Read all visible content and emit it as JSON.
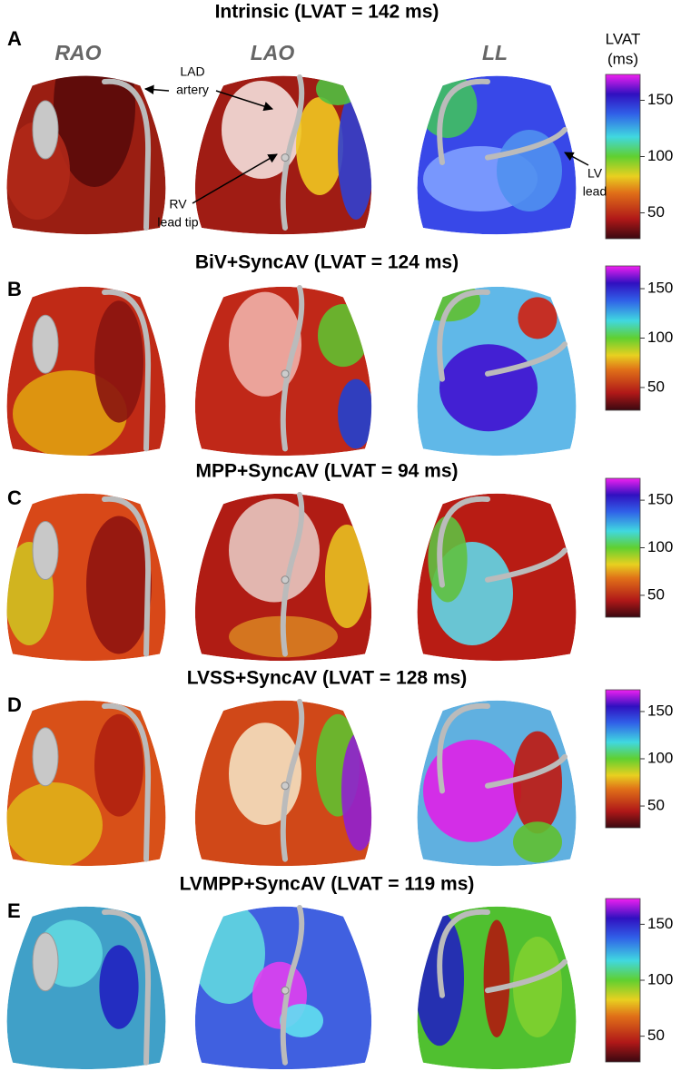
{
  "figure": {
    "views": [
      "RAO",
      "LAO",
      "LL"
    ],
    "colorbar_title": [
      "LVAT",
      "(ms)"
    ],
    "annotations": {
      "lad": [
        "LAD",
        "artery"
      ],
      "rv": [
        "RV",
        "lead tip"
      ],
      "lv": [
        "LV",
        "lead"
      ]
    },
    "panels": [
      {
        "letter": "A",
        "title": "Intrinsic (LVAT = 142 ms)",
        "colorbar": {
          "lim": [
            27,
            173
          ],
          "ticks": [
            50,
            100,
            150
          ]
        }
      },
      {
        "letter": "B",
        "title": "BiV+SyncAV (LVAT = 124 ms)",
        "colorbar": {
          "lim": [
            27,
            173
          ],
          "ticks": [
            50,
            100,
            150
          ]
        }
      },
      {
        "letter": "C",
        "title": "MPP+SyncAV (LVAT = 94 ms)",
        "colorbar": {
          "lim": [
            27,
            173
          ],
          "ticks": [
            50,
            100,
            150
          ]
        }
      },
      {
        "letter": "D",
        "title": "LVSS+SyncAV (LVAT = 128 ms)",
        "colorbar": {
          "lim": [
            27,
            173
          ],
          "ticks": [
            50,
            100,
            150
          ]
        }
      },
      {
        "letter": "E",
        "title": "LVMPP+SyncAV (LVAT = 119 ms)",
        "colorbar": {
          "lim": [
            27,
            173
          ],
          "ticks": [
            50,
            100,
            150
          ]
        }
      }
    ]
  }
}
